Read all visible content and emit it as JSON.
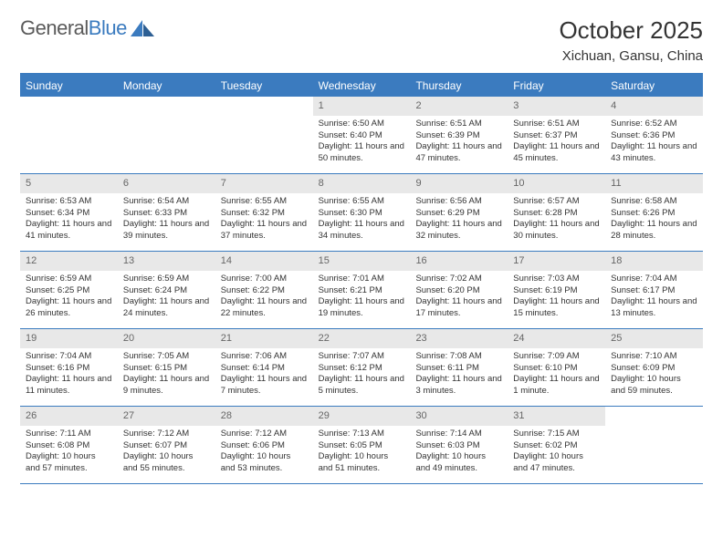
{
  "brand": {
    "part1": "General",
    "part2": "Blue"
  },
  "title": "October 2025",
  "location": "Xichuan, Gansu, China",
  "colors": {
    "accent": "#3b7bbf",
    "daynum_bg": "#e8e8e8",
    "text": "#333333",
    "muted": "#666666",
    "bg": "#ffffff"
  },
  "weekdays": [
    "Sunday",
    "Monday",
    "Tuesday",
    "Wednesday",
    "Thursday",
    "Friday",
    "Saturday"
  ],
  "weeks": [
    [
      {
        "n": "",
        "lines": []
      },
      {
        "n": "",
        "lines": []
      },
      {
        "n": "",
        "lines": []
      },
      {
        "n": "1",
        "lines": [
          "Sunrise: 6:50 AM",
          "Sunset: 6:40 PM",
          "Daylight: 11 hours and 50 minutes."
        ]
      },
      {
        "n": "2",
        "lines": [
          "Sunrise: 6:51 AM",
          "Sunset: 6:39 PM",
          "Daylight: 11 hours and 47 minutes."
        ]
      },
      {
        "n": "3",
        "lines": [
          "Sunrise: 6:51 AM",
          "Sunset: 6:37 PM",
          "Daylight: 11 hours and 45 minutes."
        ]
      },
      {
        "n": "4",
        "lines": [
          "Sunrise: 6:52 AM",
          "Sunset: 6:36 PM",
          "Daylight: 11 hours and 43 minutes."
        ]
      }
    ],
    [
      {
        "n": "5",
        "lines": [
          "Sunrise: 6:53 AM",
          "Sunset: 6:34 PM",
          "Daylight: 11 hours and 41 minutes."
        ]
      },
      {
        "n": "6",
        "lines": [
          "Sunrise: 6:54 AM",
          "Sunset: 6:33 PM",
          "Daylight: 11 hours and 39 minutes."
        ]
      },
      {
        "n": "7",
        "lines": [
          "Sunrise: 6:55 AM",
          "Sunset: 6:32 PM",
          "Daylight: 11 hours and 37 minutes."
        ]
      },
      {
        "n": "8",
        "lines": [
          "Sunrise: 6:55 AM",
          "Sunset: 6:30 PM",
          "Daylight: 11 hours and 34 minutes."
        ]
      },
      {
        "n": "9",
        "lines": [
          "Sunrise: 6:56 AM",
          "Sunset: 6:29 PM",
          "Daylight: 11 hours and 32 minutes."
        ]
      },
      {
        "n": "10",
        "lines": [
          "Sunrise: 6:57 AM",
          "Sunset: 6:28 PM",
          "Daylight: 11 hours and 30 minutes."
        ]
      },
      {
        "n": "11",
        "lines": [
          "Sunrise: 6:58 AM",
          "Sunset: 6:26 PM",
          "Daylight: 11 hours and 28 minutes."
        ]
      }
    ],
    [
      {
        "n": "12",
        "lines": [
          "Sunrise: 6:59 AM",
          "Sunset: 6:25 PM",
          "Daylight: 11 hours and 26 minutes."
        ]
      },
      {
        "n": "13",
        "lines": [
          "Sunrise: 6:59 AM",
          "Sunset: 6:24 PM",
          "Daylight: 11 hours and 24 minutes."
        ]
      },
      {
        "n": "14",
        "lines": [
          "Sunrise: 7:00 AM",
          "Sunset: 6:22 PM",
          "Daylight: 11 hours and 22 minutes."
        ]
      },
      {
        "n": "15",
        "lines": [
          "Sunrise: 7:01 AM",
          "Sunset: 6:21 PM",
          "Daylight: 11 hours and 19 minutes."
        ]
      },
      {
        "n": "16",
        "lines": [
          "Sunrise: 7:02 AM",
          "Sunset: 6:20 PM",
          "Daylight: 11 hours and 17 minutes."
        ]
      },
      {
        "n": "17",
        "lines": [
          "Sunrise: 7:03 AM",
          "Sunset: 6:19 PM",
          "Daylight: 11 hours and 15 minutes."
        ]
      },
      {
        "n": "18",
        "lines": [
          "Sunrise: 7:04 AM",
          "Sunset: 6:17 PM",
          "Daylight: 11 hours and 13 minutes."
        ]
      }
    ],
    [
      {
        "n": "19",
        "lines": [
          "Sunrise: 7:04 AM",
          "Sunset: 6:16 PM",
          "Daylight: 11 hours and 11 minutes."
        ]
      },
      {
        "n": "20",
        "lines": [
          "Sunrise: 7:05 AM",
          "Sunset: 6:15 PM",
          "Daylight: 11 hours and 9 minutes."
        ]
      },
      {
        "n": "21",
        "lines": [
          "Sunrise: 7:06 AM",
          "Sunset: 6:14 PM",
          "Daylight: 11 hours and 7 minutes."
        ]
      },
      {
        "n": "22",
        "lines": [
          "Sunrise: 7:07 AM",
          "Sunset: 6:12 PM",
          "Daylight: 11 hours and 5 minutes."
        ]
      },
      {
        "n": "23",
        "lines": [
          "Sunrise: 7:08 AM",
          "Sunset: 6:11 PM",
          "Daylight: 11 hours and 3 minutes."
        ]
      },
      {
        "n": "24",
        "lines": [
          "Sunrise: 7:09 AM",
          "Sunset: 6:10 PM",
          "Daylight: 11 hours and 1 minute."
        ]
      },
      {
        "n": "25",
        "lines": [
          "Sunrise: 7:10 AM",
          "Sunset: 6:09 PM",
          "Daylight: 10 hours and 59 minutes."
        ]
      }
    ],
    [
      {
        "n": "26",
        "lines": [
          "Sunrise: 7:11 AM",
          "Sunset: 6:08 PM",
          "Daylight: 10 hours and 57 minutes."
        ]
      },
      {
        "n": "27",
        "lines": [
          "Sunrise: 7:12 AM",
          "Sunset: 6:07 PM",
          "Daylight: 10 hours and 55 minutes."
        ]
      },
      {
        "n": "28",
        "lines": [
          "Sunrise: 7:12 AM",
          "Sunset: 6:06 PM",
          "Daylight: 10 hours and 53 minutes."
        ]
      },
      {
        "n": "29",
        "lines": [
          "Sunrise: 7:13 AM",
          "Sunset: 6:05 PM",
          "Daylight: 10 hours and 51 minutes."
        ]
      },
      {
        "n": "30",
        "lines": [
          "Sunrise: 7:14 AM",
          "Sunset: 6:03 PM",
          "Daylight: 10 hours and 49 minutes."
        ]
      },
      {
        "n": "31",
        "lines": [
          "Sunrise: 7:15 AM",
          "Sunset: 6:02 PM",
          "Daylight: 10 hours and 47 minutes."
        ]
      },
      {
        "n": "",
        "lines": []
      }
    ]
  ]
}
